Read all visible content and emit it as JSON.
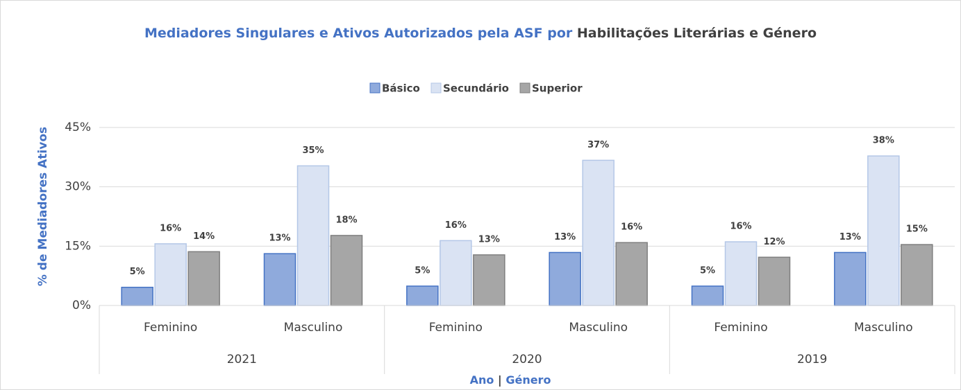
{
  "chart_data": {
    "type": "bar",
    "title": [
      "Mediadores Singulares e Ativos Autorizados pela ASF por",
      "Habilitações Literárias e Género"
    ],
    "ylabel": "% de Mediadores Ativos",
    "xlabel": [
      "Ano",
      "|",
      "Género"
    ],
    "groups": [
      {
        "name": "2021",
        "categories": [
          "Feminino",
          "Masculino"
        ]
      },
      {
        "name": "2020",
        "categories": [
          "Feminino",
          "Masculino"
        ]
      },
      {
        "name": "2019",
        "categories": [
          "Feminino",
          "Masculino"
        ]
      }
    ],
    "series": [
      {
        "name": "Básico",
        "color": "#8faadc",
        "edgecolor": "#4472c4",
        "values": [
          4.6,
          13.1,
          4.9,
          13.4,
          4.9,
          13.4
        ],
        "value_labels": [
          "5%",
          "13%",
          "5%",
          "13%",
          "5%",
          "13%"
        ]
      },
      {
        "name": "Secundário",
        "color": "#dae3f3",
        "edgecolor": "#b4c7e7",
        "values": [
          15.6,
          35.3,
          16.4,
          36.7,
          16.1,
          37.8
        ],
        "value_labels": [
          "16%",
          "35%",
          "16%",
          "37%",
          "16%",
          "38%"
        ]
      },
      {
        "name": "Superior",
        "color": "#a6a6a6",
        "edgecolor": "#7f7f7f",
        "values": [
          13.6,
          17.7,
          12.8,
          15.9,
          12.2,
          15.4
        ],
        "value_labels": [
          "14%",
          "18%",
          "13%",
          "16%",
          "12%",
          "15%"
        ]
      }
    ],
    "ylim": [
      0,
      45
    ],
    "yticks": [
      {
        "value": 0,
        "label": "0%"
      },
      {
        "value": 15,
        "label": "15%"
      },
      {
        "value": 30,
        "label": "30%"
      },
      {
        "value": 45,
        "label": "45%"
      }
    ],
    "grid": true,
    "legend": "top"
  }
}
